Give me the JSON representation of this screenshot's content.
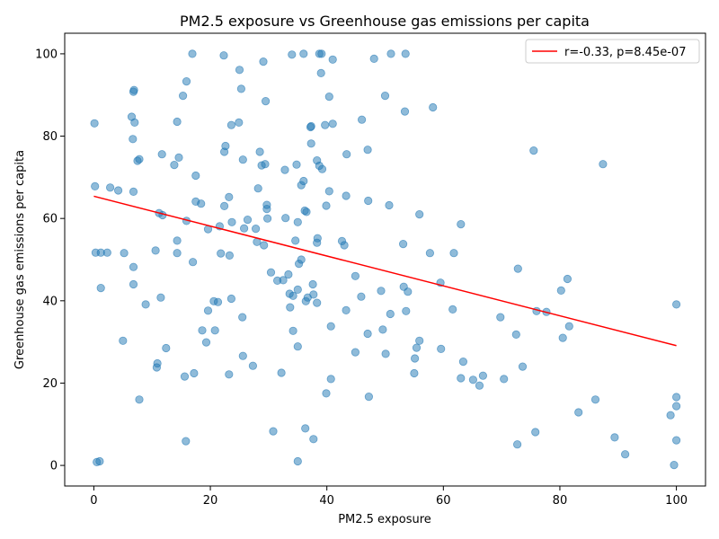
{
  "chart_data": {
    "type": "scatter",
    "title": "PM2.5 exposure vs Greenhouse gas emissions per capita",
    "xlabel": "PM2.5 exposure",
    "ylabel": "Greenhouse gas emissions per capita",
    "xlim": [
      -5,
      105
    ],
    "ylim": [
      -5,
      105
    ],
    "xticks": [
      0,
      20,
      40,
      60,
      80,
      100
    ],
    "yticks": [
      0,
      20,
      40,
      60,
      80,
      100
    ],
    "grid": false,
    "legend_position": "top-right",
    "colors": {
      "points": "#1f77b4",
      "fit_line": "#ff0000"
    },
    "fit_line": {
      "label": "r=-0.33, p=8.45e-07",
      "x": [
        0,
        100
      ],
      "y": [
        65.4,
        29.1
      ]
    },
    "points": [
      [
        0.5,
        0.8
      ],
      [
        1.0,
        1.0
      ],
      [
        15.8,
        5.9
      ],
      [
        30.8,
        8.3
      ],
      [
        35.0,
        1.0
      ],
      [
        36.3,
        9.0
      ],
      [
        37.7,
        6.4
      ],
      [
        72.7,
        5.1
      ],
      [
        75.8,
        8.1
      ],
      [
        91.2,
        2.7
      ],
      [
        89.4,
        6.8
      ],
      [
        99.6,
        0.1
      ],
      [
        100.0,
        6.1
      ],
      [
        99.0,
        12.2
      ],
      [
        100.0,
        14.4
      ],
      [
        100.0,
        16.6
      ],
      [
        83.2,
        12.9
      ],
      [
        86.1,
        16.0
      ],
      [
        7.8,
        16.0
      ],
      [
        39.9,
        17.5
      ],
      [
        40.7,
        21.0
      ],
      [
        47.2,
        16.7
      ],
      [
        10.8,
        23.8
      ],
      [
        10.9,
        24.8
      ],
      [
        15.6,
        21.6
      ],
      [
        17.2,
        22.4
      ],
      [
        23.2,
        22.1
      ],
      [
        27.3,
        24.2
      ],
      [
        32.2,
        22.5
      ],
      [
        44.9,
        27.5
      ],
      [
        55.0,
        22.4
      ],
      [
        50.1,
        27.1
      ],
      [
        55.1,
        26.0
      ],
      [
        55.4,
        28.6
      ],
      [
        55.9,
        30.3
      ],
      [
        59.6,
        28.3
      ],
      [
        63.0,
        21.2
      ],
      [
        63.4,
        25.2
      ],
      [
        65.1,
        20.8
      ],
      [
        66.2,
        19.4
      ],
      [
        66.8,
        21.8
      ],
      [
        70.4,
        21.0
      ],
      [
        73.6,
        24.0
      ],
      [
        72.5,
        31.8
      ],
      [
        5.0,
        30.3
      ],
      [
        12.4,
        28.5
      ],
      [
        18.6,
        32.8
      ],
      [
        19.3,
        29.9
      ],
      [
        20.8,
        32.8
      ],
      [
        25.6,
        26.6
      ],
      [
        35.0,
        28.9
      ],
      [
        34.2,
        32.7
      ],
      [
        47.0,
        32.0
      ],
      [
        49.6,
        33.0
      ],
      [
        80.5,
        31.0
      ],
      [
        81.6,
        33.8
      ],
      [
        1.2,
        43.1
      ],
      [
        6.8,
        44.0
      ],
      [
        8.9,
        39.1
      ],
      [
        11.5,
        40.8
      ],
      [
        17.0,
        49.4
      ],
      [
        19.6,
        37.6
      ],
      [
        20.6,
        39.9
      ],
      [
        21.3,
        39.7
      ],
      [
        23.6,
        40.5
      ],
      [
        25.5,
        36.0
      ],
      [
        30.4,
        46.9
      ],
      [
        31.5,
        44.9
      ],
      [
        32.5,
        45.0
      ],
      [
        33.4,
        46.4
      ],
      [
        33.6,
        41.7
      ],
      [
        33.7,
        38.4
      ],
      [
        34.2,
        41.2
      ],
      [
        35.0,
        42.7
      ],
      [
        35.2,
        49.0
      ],
      [
        35.6,
        50.0
      ],
      [
        36.4,
        39.9
      ],
      [
        36.7,
        40.8
      ],
      [
        37.7,
        41.5
      ],
      [
        37.6,
        44.0
      ],
      [
        38.3,
        39.5
      ],
      [
        40.7,
        33.8
      ],
      [
        43.3,
        37.7
      ],
      [
        44.9,
        46.0
      ],
      [
        45.9,
        41.0
      ],
      [
        49.3,
        42.4
      ],
      [
        50.9,
        36.8
      ],
      [
        53.2,
        43.4
      ],
      [
        53.6,
        37.5
      ],
      [
        53.9,
        42.2
      ],
      [
        59.5,
        44.4
      ],
      [
        61.6,
        37.9
      ],
      [
        69.8,
        36.0
      ],
      [
        72.8,
        47.8
      ],
      [
        76.0,
        37.5
      ],
      [
        77.7,
        37.3
      ],
      [
        80.2,
        42.5
      ],
      [
        81.3,
        45.3
      ],
      [
        100.0,
        39.1
      ],
      [
        0.2,
        67.8
      ],
      [
        0.3,
        51.7
      ],
      [
        1.2,
        51.7
      ],
      [
        2.3,
        51.7
      ],
      [
        2.8,
        67.5
      ],
      [
        4.2,
        66.8
      ],
      [
        5.2,
        51.6
      ],
      [
        6.8,
        48.2
      ],
      [
        6.8,
        66.5
      ],
      [
        10.6,
        52.2
      ],
      [
        11.2,
        61.3
      ],
      [
        11.8,
        60.8
      ],
      [
        14.3,
        54.6
      ],
      [
        14.3,
        51.6
      ],
      [
        15.9,
        59.4
      ],
      [
        17.5,
        64.1
      ],
      [
        18.4,
        63.6
      ],
      [
        19.6,
        57.4
      ],
      [
        21.6,
        58.1
      ],
      [
        21.8,
        51.5
      ],
      [
        22.4,
        63.0
      ],
      [
        23.2,
        65.2
      ],
      [
        23.3,
        51.0
      ],
      [
        23.7,
        59.1
      ],
      [
        25.8,
        57.6
      ],
      [
        26.4,
        59.7
      ],
      [
        27.8,
        57.5
      ],
      [
        28.0,
        54.3
      ],
      [
        28.2,
        67.3
      ],
      [
        29.2,
        53.5
      ],
      [
        29.7,
        62.3
      ],
      [
        29.7,
        63.3
      ],
      [
        29.8,
        60.0
      ],
      [
        32.9,
        60.1
      ],
      [
        34.6,
        54.6
      ],
      [
        35.0,
        59.1
      ],
      [
        35.6,
        68.1
      ],
      [
        36.0,
        69.1
      ],
      [
        36.2,
        61.9
      ],
      [
        36.5,
        61.6
      ],
      [
        38.3,
        54.1
      ],
      [
        38.4,
        55.2
      ],
      [
        39.9,
        63.1
      ],
      [
        40.4,
        66.6
      ],
      [
        42.6,
        54.5
      ],
      [
        43.0,
        53.5
      ],
      [
        43.3,
        65.5
      ],
      [
        47.1,
        64.3
      ],
      [
        50.7,
        63.2
      ],
      [
        53.1,
        53.8
      ],
      [
        55.9,
        61.0
      ],
      [
        57.7,
        51.6
      ],
      [
        61.8,
        51.6
      ],
      [
        63.0,
        58.6
      ],
      [
        0.1,
        83.1
      ],
      [
        6.5,
        84.7
      ],
      [
        6.7,
        79.3
      ],
      [
        6.8,
        90.8
      ],
      [
        6.9,
        91.2
      ],
      [
        7.0,
        83.3
      ],
      [
        7.5,
        74.0
      ],
      [
        7.8,
        74.4
      ],
      [
        11.7,
        75.6
      ],
      [
        13.8,
        73.0
      ],
      [
        14.3,
        83.5
      ],
      [
        14.6,
        74.8
      ],
      [
        15.3,
        89.8
      ],
      [
        15.9,
        93.3
      ],
      [
        16.9,
        100.0
      ],
      [
        17.5,
        70.4
      ],
      [
        22.3,
        99.6
      ],
      [
        22.4,
        76.2
      ],
      [
        22.6,
        77.6
      ],
      [
        23.6,
        82.7
      ],
      [
        24.9,
        83.3
      ],
      [
        25.0,
        96.1
      ],
      [
        25.3,
        91.5
      ],
      [
        25.6,
        74.3
      ],
      [
        28.5,
        76.2
      ],
      [
        28.8,
        72.9
      ],
      [
        29.1,
        98.1
      ],
      [
        29.4,
        73.2
      ],
      [
        29.5,
        88.5
      ],
      [
        32.8,
        71.8
      ],
      [
        34.0,
        99.8
      ],
      [
        34.8,
        73.1
      ],
      [
        36.0,
        100.0
      ],
      [
        37.2,
        82.2
      ],
      [
        37.3,
        82.4
      ],
      [
        37.3,
        78.2
      ],
      [
        38.3,
        74.1
      ],
      [
        38.7,
        100.0
      ],
      [
        38.7,
        72.8
      ],
      [
        39.1,
        100.0
      ],
      [
        39.2,
        72.0
      ],
      [
        39.0,
        95.3
      ],
      [
        39.7,
        82.7
      ],
      [
        40.4,
        89.6
      ],
      [
        41.0,
        98.6
      ],
      [
        41.0,
        83.0
      ],
      [
        43.4,
        75.6
      ],
      [
        46.0,
        84.0
      ],
      [
        47.0,
        76.7
      ],
      [
        48.1,
        98.8
      ],
      [
        50.0,
        89.8
      ],
      [
        51.0,
        100.0
      ],
      [
        53.4,
        86.0
      ],
      [
        53.5,
        100.0
      ],
      [
        58.2,
        87.0
      ],
      [
        75.5,
        76.5
      ],
      [
        87.4,
        73.2
      ]
    ]
  }
}
